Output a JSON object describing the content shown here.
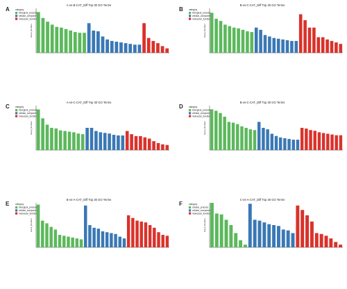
{
  "colors": {
    "biological_process": "#5cb85c",
    "cellular_component": "#3a78b5",
    "molecular_function": "#d9322b",
    "axis": "#333333",
    "text": "#222222"
  },
  "chart_data": [
    {
      "type": "bar",
      "panel_letter": "A",
      "title": "A-vs-B-CAT_Diff Top 30 GO Terms",
      "ylabel": "Gene_Number",
      "legend_title": "category",
      "legend_position": "top-left",
      "legend_labels": [
        "biological_process",
        "cellular_component",
        "molecular_function"
      ],
      "ylim": [
        0,
        60
      ],
      "series": [
        {
          "name": "biological_process",
          "values": [
            55,
            47,
            42,
            38,
            35,
            34,
            32,
            30,
            28,
            27,
            27
          ]
        },
        {
          "name": "cellular_component",
          "values": [
            40,
            30,
            29,
            22,
            18,
            16,
            15,
            14,
            13,
            12,
            11,
            11
          ]
        },
        {
          "name": "molecular_function",
          "values": [
            40,
            20,
            16,
            13,
            9,
            6
          ]
        }
      ]
    },
    {
      "type": "bar",
      "panel_letter": "B",
      "title": "B-vs-C-CAT_Diff Top 30 GO Terms",
      "ylabel": "Gene_Number",
      "legend_title": "category",
      "legend_position": "top-left",
      "legend_labels": [
        "biological_process",
        "cellular_component",
        "molecular_function"
      ],
      "ylim": [
        0,
        60
      ],
      "series": [
        {
          "name": "biological_process",
          "values": [
            54,
            46,
            43,
            38,
            36,
            34,
            33,
            31,
            29,
            28
          ]
        },
        {
          "name": "cellular_component",
          "values": [
            34,
            31,
            24,
            22,
            20,
            19,
            18,
            17,
            16,
            16
          ]
        },
        {
          "name": "molecular_function",
          "values": [
            52,
            44,
            34,
            34,
            21,
            21,
            18,
            16,
            14,
            12
          ]
        }
      ]
    },
    {
      "type": "bar",
      "panel_letter": "C",
      "title": "A-vs-C-CAT_Diff Top 30 GO Terms",
      "ylabel": "Gene_Number",
      "legend_title": "category",
      "legend_position": "top-left",
      "legend_labels": [
        "biological_process",
        "cellular_component",
        "molecular_function"
      ],
      "ylim": [
        0,
        70
      ],
      "series": [
        {
          "name": "biological_process",
          "values": [
            64,
            50,
            40,
            35,
            34,
            31,
            30,
            29,
            28,
            26,
            25
          ]
        },
        {
          "name": "cellular_component",
          "values": [
            35,
            35,
            30,
            28,
            27,
            26,
            24,
            23,
            23
          ]
        },
        {
          "name": "molecular_function",
          "values": [
            30,
            25,
            22,
            22,
            20,
            18,
            14,
            11,
            9,
            8
          ]
        }
      ]
    },
    {
      "type": "bar",
      "panel_letter": "D",
      "title": "B-vs-C-CAT_Diff Top 30 GO Terms",
      "ylabel": "Gene_Number",
      "legend_title": "category",
      "legend_position": "top-left",
      "legend_labels": [
        "biological_process",
        "cellular_component",
        "molecular_function"
      ],
      "ylim": [
        0,
        60
      ],
      "series": [
        {
          "name": "biological_process",
          "values": [
            55,
            53,
            50,
            45,
            38,
            37,
            35,
            32,
            30,
            28,
            27
          ]
        },
        {
          "name": "cellular_component",
          "values": [
            38,
            30,
            28,
            22,
            19,
            17,
            16,
            15,
            14,
            14
          ]
        },
        {
          "name": "molecular_function",
          "values": [
            30,
            29,
            27,
            26,
            24,
            23,
            22,
            21,
            20,
            20
          ]
        }
      ]
    },
    {
      "type": "bar",
      "panel_letter": "E",
      "title": "B-vs-A-CAT_Diff Top 30 GO Terms",
      "ylabel": "Gene_Number",
      "legend_title": "category",
      "legend_position": "top-left",
      "legend_labels": [
        "biological_process",
        "cellular_component",
        "molecular_function"
      ],
      "ylim": [
        0,
        50
      ],
      "series": [
        {
          "name": "biological_process",
          "values": [
            48,
            30,
            27,
            23,
            20,
            14,
            13,
            12,
            11,
            10,
            9
          ]
        },
        {
          "name": "cellular_component",
          "values": [
            47,
            25,
            22,
            21,
            18,
            17,
            16,
            15,
            12,
            10
          ]
        },
        {
          "name": "molecular_function",
          "values": [
            36,
            33,
            30,
            29,
            28,
            25,
            22,
            17,
            14,
            13
          ]
        }
      ]
    },
    {
      "type": "bar",
      "panel_letter": "F",
      "title": "C-vs-A-CAT_Diff Top 30 GO Terms",
      "ylabel": "Gene_Number",
      "legend_title": "category",
      "legend_position": "top-left",
      "legend_labels": [
        "cellular_process",
        "cellular_component",
        "molecular_function"
      ],
      "ylim": [
        0,
        50
      ],
      "series": [
        {
          "name": "cellular_process",
          "values": [
            50,
            38,
            37,
            31,
            25,
            16,
            8,
            3
          ]
        },
        {
          "name": "cellular_component",
          "values": [
            49,
            31,
            30,
            28,
            26,
            25,
            24,
            20,
            19,
            16
          ]
        },
        {
          "name": "molecular_function",
          "values": [
            47,
            42,
            36,
            29,
            16,
            15,
            13,
            10,
            6,
            3
          ]
        }
      ]
    }
  ]
}
